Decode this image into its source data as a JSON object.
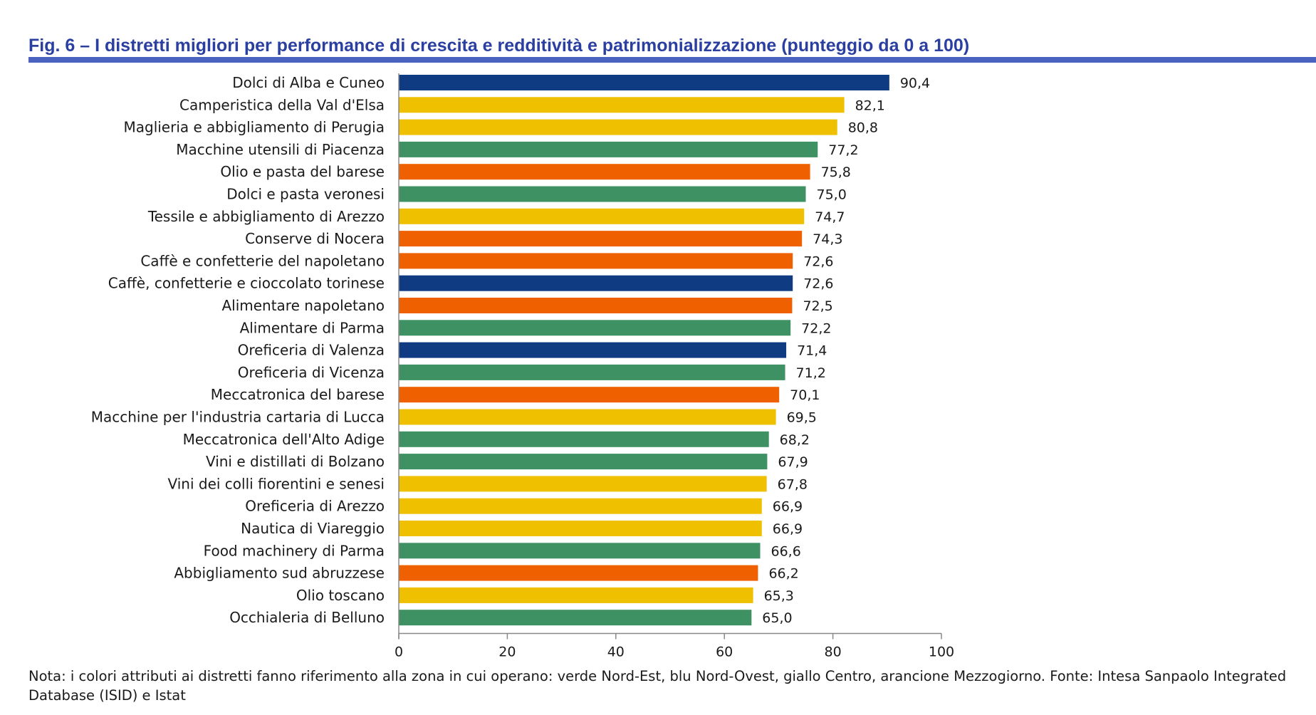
{
  "title": "Fig. 6 – I distretti migliori per performance di crescita e redditività e patrimonializzazione (punteggio da 0 a 100)",
  "note": "Nota: i colori attributi ai distretti fanno riferimento alla zona in cui operano: verde Nord-Est, blu Nord-Ovest, giallo Centro, arancione Mezzogiorno. Fonte: Intesa Sanpaolo Integrated Database (ISID) e Istat",
  "colors": {
    "Nord-Est": "#3e9162",
    "Nord-Ovest": "#0f3b82",
    "Centro": "#eec000",
    "Mezzogiorno": "#ee6000",
    "title": "#2a3fa0",
    "rule": "#4a62c0"
  },
  "chart_data": {
    "type": "bar",
    "orientation": "horizontal",
    "categories": [
      "Dolci di Alba e Cuneo",
      "Camperistica della Val d'Elsa",
      "Maglieria e abbigliamento di Perugia",
      "Macchine utensili di Piacenza",
      "Olio e pasta del barese",
      "Dolci e pasta veronesi",
      "Tessile e abbigliamento di Arezzo",
      "Conserve di Nocera",
      "Caffè e confetterie del napoletano",
      "Caffè, confetterie e cioccolato torinese",
      "Alimentare napoletano",
      "Alimentare di Parma",
      "Oreficeria di Valenza",
      "Oreficeria di Vicenza",
      "Meccatronica del barese",
      "Macchine per l'industria cartaria di Lucca",
      "Meccatronica dell'Alto Adige",
      "Vini e distillati di Bolzano",
      "Vini dei colli fiorentini e senesi",
      "Oreficeria di Arezzo",
      "Nautica di Viareggio",
      "Food machinery di Parma",
      "Abbigliamento sud abruzzese",
      "Olio toscano",
      "Occhialeria di Belluno"
    ],
    "values": [
      90.4,
      82.1,
      80.8,
      77.2,
      75.8,
      75.0,
      74.7,
      74.3,
      72.6,
      72.6,
      72.5,
      72.2,
      71.4,
      71.2,
      70.1,
      69.5,
      68.2,
      67.9,
      67.8,
      66.9,
      66.9,
      66.6,
      66.2,
      65.3,
      65.0
    ],
    "value_labels": [
      "90,4",
      "82,1",
      "80,8",
      "77,2",
      "75,8",
      "75,0",
      "74,7",
      "74,3",
      "72,6",
      "72,6",
      "72,5",
      "72,2",
      "71,4",
      "71,2",
      "70,1",
      "69,5",
      "68,2",
      "67,9",
      "67,8",
      "66,9",
      "66,9",
      "66,6",
      "66,2",
      "65,3",
      "65,0"
    ],
    "zones": [
      "Nord-Ovest",
      "Centro",
      "Centro",
      "Nord-Est",
      "Mezzogiorno",
      "Nord-Est",
      "Centro",
      "Mezzogiorno",
      "Mezzogiorno",
      "Nord-Ovest",
      "Mezzogiorno",
      "Nord-Est",
      "Nord-Ovest",
      "Nord-Est",
      "Mezzogiorno",
      "Centro",
      "Nord-Est",
      "Nord-Est",
      "Centro",
      "Centro",
      "Centro",
      "Nord-Est",
      "Mezzogiorno",
      "Centro",
      "Nord-Est"
    ],
    "xlim": [
      0,
      100
    ],
    "xticks": [
      0,
      20,
      40,
      60,
      80,
      100
    ],
    "xtick_labels": [
      "0",
      "20",
      "40",
      "60",
      "80",
      "100"
    ],
    "grid": false,
    "legend": "none"
  }
}
